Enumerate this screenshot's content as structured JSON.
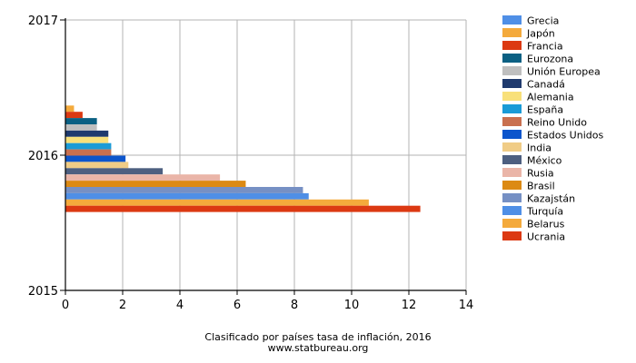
{
  "chart_data": {
    "type": "bar",
    "orientation": "horizontal",
    "title": "Clasificado por países tasa de inflación, 2016",
    "source": "www.statbureau.org",
    "xlim": [
      0,
      14
    ],
    "x_ticks": [
      "0",
      "2",
      "4",
      "6",
      "8",
      "10",
      "12",
      "14"
    ],
    "y_ticks": [
      "2017",
      "2016",
      "2015"
    ],
    "grid": true,
    "legend_position": "right",
    "categories": [
      "2016"
    ],
    "series": [
      {
        "name": "Grecia",
        "color": "#4f8fe6",
        "values": [
          0.0
        ]
      },
      {
        "name": "Japón",
        "color": "#f4aa3c",
        "values": [
          0.3
        ]
      },
      {
        "name": "Francia",
        "color": "#dc3912",
        "values": [
          0.6
        ]
      },
      {
        "name": "Eurozona",
        "color": "#0b6083",
        "values": [
          1.1
        ]
      },
      {
        "name": "Unión Europea",
        "color": "#bfbfbf",
        "values": [
          1.1
        ]
      },
      {
        "name": "Canadá",
        "color": "#1f3a6e",
        "values": [
          1.5
        ]
      },
      {
        "name": "Alemania",
        "color": "#f8e07a",
        "values": [
          1.5
        ]
      },
      {
        "name": "España",
        "color": "#1a9bd7",
        "values": [
          1.6
        ]
      },
      {
        "name": "Reino Unido",
        "color": "#c9704f",
        "values": [
          1.6
        ]
      },
      {
        "name": "Estados Unidos",
        "color": "#0c55cc",
        "values": [
          2.1
        ]
      },
      {
        "name": "India",
        "color": "#f0cc86",
        "values": [
          2.2
        ]
      },
      {
        "name": "México",
        "color": "#4d5f80",
        "values": [
          3.4
        ]
      },
      {
        "name": "Rusia",
        "color": "#eab5a8",
        "values": [
          5.4
        ]
      },
      {
        "name": "Brasil",
        "color": "#dc8a14",
        "values": [
          6.3
        ]
      },
      {
        "name": "Kazajstán",
        "color": "#7690c4",
        "values": [
          8.3
        ]
      },
      {
        "name": "Turquía",
        "color": "#4f8fe6",
        "values": [
          8.5
        ]
      },
      {
        "name": "Belarus",
        "color": "#f4aa3c",
        "values": [
          10.6
        ]
      },
      {
        "name": "Ucrania",
        "color": "#dc3912",
        "values": [
          12.4
        ]
      }
    ]
  }
}
